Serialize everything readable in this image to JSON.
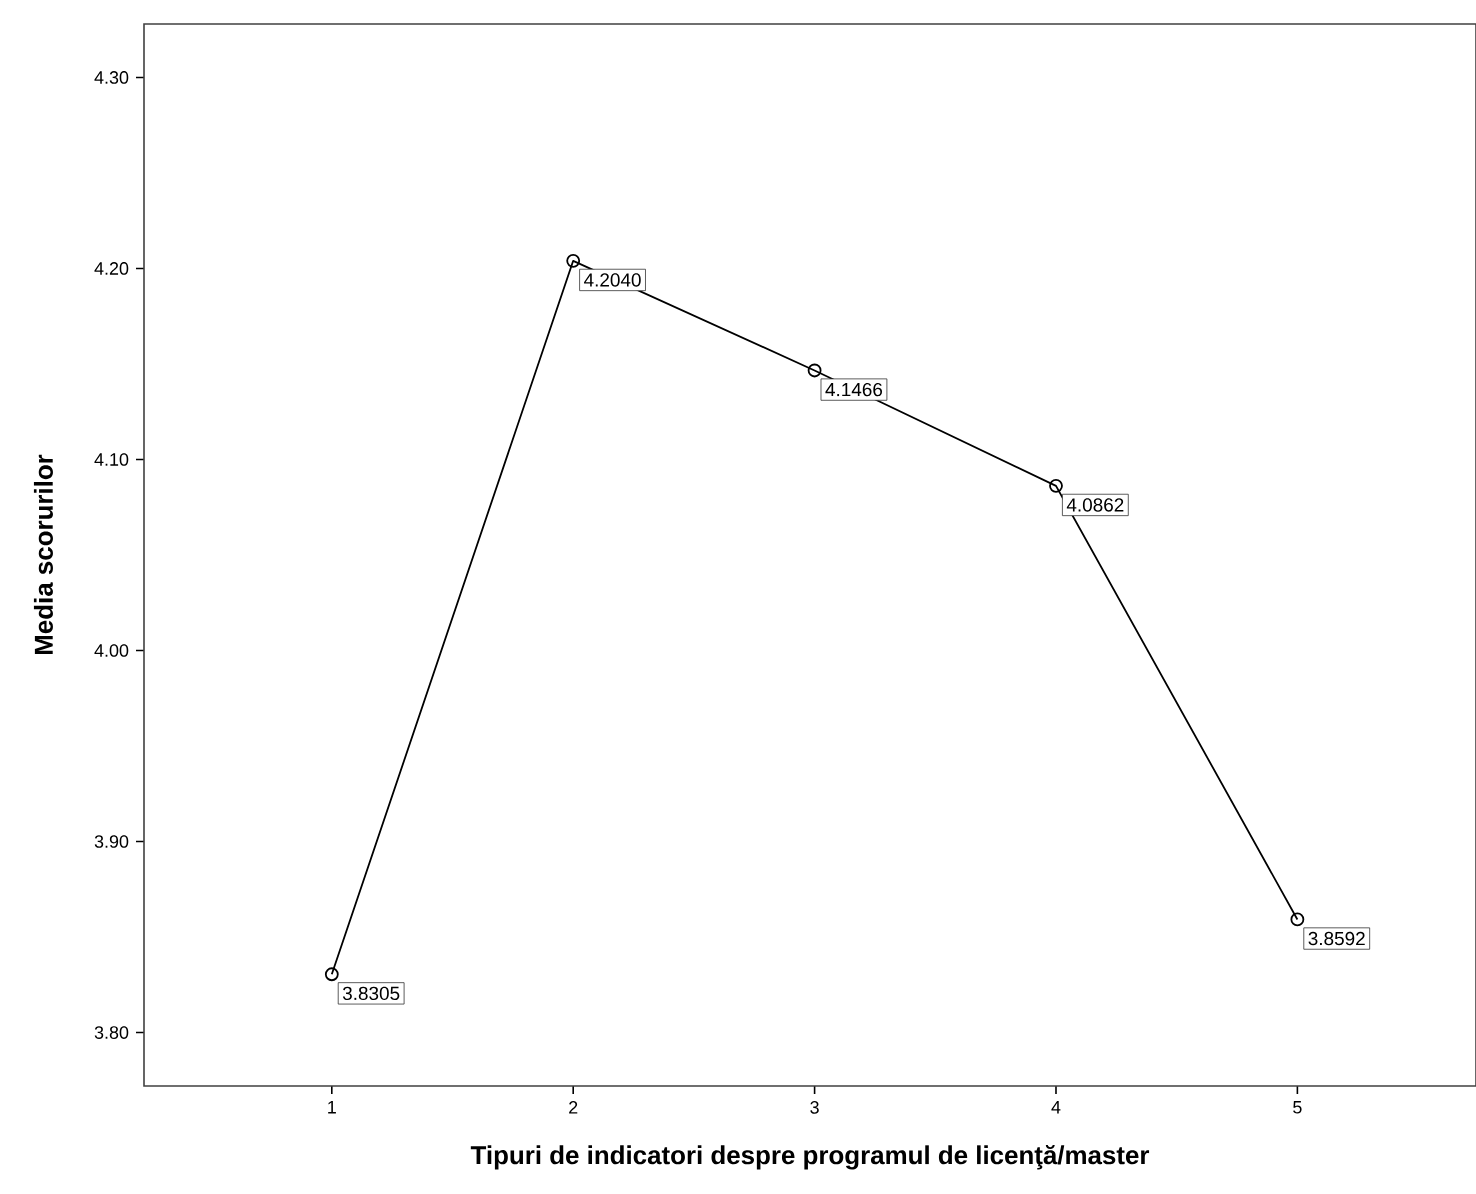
{
  "chart_data": {
    "type": "line",
    "xlabel": "Tipuri de indicatori despre programul de licenţă/master",
    "ylabel": "Media scorurilor",
    "x": [
      1,
      2,
      3,
      4,
      5
    ],
    "values": [
      3.8305,
      4.204,
      4.1466,
      4.0862,
      3.8592
    ],
    "value_labels": [
      "3.8305",
      "4.2040",
      "4.1466",
      "4.0862",
      "3.8592"
    ],
    "color": "#000000",
    "marker": "circle",
    "line_style": "solid",
    "grid": false,
    "xlim": [
      0.222,
      5.74
    ],
    "xticks": [
      1,
      2,
      3,
      4,
      5
    ],
    "ylim": [
      3.772,
      4.328
    ],
    "yticks": [
      {
        "value": 3.8,
        "label": "3.80"
      },
      {
        "value": 3.9,
        "label": "3.90"
      },
      {
        "value": 4.0,
        "label": "4.00"
      },
      {
        "value": 4.1,
        "label": "4.10"
      },
      {
        "value": 4.2,
        "label": "4.20"
      },
      {
        "value": 4.3,
        "label": "4.30"
      }
    ]
  }
}
